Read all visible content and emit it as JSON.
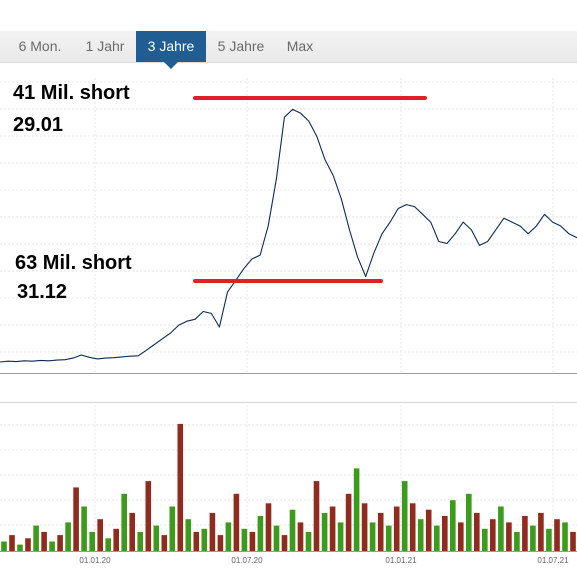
{
  "tabs": [
    {
      "label": "6 Mon.",
      "active": false
    },
    {
      "label": "1 Jahr",
      "active": false
    },
    {
      "label": "3 Jahre",
      "active": true
    },
    {
      "label": "5 Jahre",
      "active": false
    },
    {
      "label": "Max",
      "active": false
    }
  ],
  "annotations": {
    "upper": {
      "line1": "41 Mil. short",
      "line2": "29.01"
    },
    "lower": {
      "line1": "63 Mil. short",
      "line2": "31.12"
    }
  },
  "colors": {
    "price_line": "#0d2a52",
    "annotation_line": "#e01f26",
    "volume_up": "#3c9a1c",
    "volume_down": "#8f2b1f",
    "grid": "#e6e6e6",
    "axis": "#9a9a9a",
    "tab_active_bg": "#1f5d93"
  },
  "chart_data": {
    "type": "line",
    "x_tick_labels": [
      "01.01.20",
      "01.07.20",
      "01.01.21",
      "01.07.21"
    ],
    "price_series": {
      "x": [
        0,
        0.5,
        1,
        1.5,
        2,
        2.5,
        3,
        3.5,
        4,
        4.5,
        5,
        5.5,
        6,
        6.5,
        7,
        7.5,
        8,
        8.5,
        9,
        9.5,
        10,
        10.5,
        11,
        11.5,
        12,
        12.5,
        13,
        13.5,
        14,
        14.5,
        15,
        15.5,
        16,
        16.5,
        17,
        17.5,
        18,
        18.5,
        19,
        19.5,
        20,
        20.5,
        21,
        21.5,
        22,
        22.5,
        23,
        23.5,
        24,
        24.5,
        25,
        25.5,
        26,
        26.5,
        27,
        27.5,
        28,
        28.5,
        29,
        29.5,
        30,
        30.5,
        31,
        31.5,
        32,
        32.5,
        33,
        33.5,
        34,
        34.5,
        35,
        35.5
      ],
      "values": [
        0.0,
        0.2,
        0.1,
        0.3,
        0.2,
        0.4,
        0.3,
        0.5,
        0.6,
        1.0,
        1.8,
        1.2,
        0.8,
        1.0,
        1.1,
        1.3,
        1.5,
        1.6,
        3.0,
        4.5,
        6.0,
        7.5,
        9.5,
        10.5,
        11.0,
        13.0,
        12.5,
        9.0,
        18.0,
        21.0,
        24.0,
        26.5,
        27.5,
        35.0,
        47.0,
        63.0,
        65.0,
        64.0,
        62.0,
        58.0,
        52.0,
        48.0,
        42.0,
        34.0,
        27.0,
        22.0,
        28.0,
        33.0,
        36.0,
        39.5,
        40.5,
        40.0,
        38.0,
        36.0,
        31.0,
        30.5,
        33.0,
        36.0,
        34.0,
        30.0,
        31.0,
        34.0,
        37.0,
        36.0,
        35.0,
        33.0,
        35.0,
        38.0,
        36.0,
        35.0,
        33.0,
        32.0
      ],
      "ylim": [
        0,
        70
      ],
      "xlim": [
        0,
        35.5
      ]
    },
    "volume_series": {
      "values": [
        3,
        5,
        2,
        4,
        8,
        6,
        3,
        5,
        9,
        20,
        14,
        6,
        10,
        4,
        7,
        18,
        12,
        6,
        22,
        8,
        5,
        14,
        40,
        10,
        6,
        7,
        12,
        5,
        9,
        18,
        7,
        6,
        11,
        15,
        8,
        5,
        13,
        9,
        6,
        22,
        12,
        14,
        9,
        18,
        26,
        15,
        9,
        12,
        8,
        14,
        22,
        15,
        10,
        13,
        8,
        11,
        16,
        9,
        18,
        12,
        7,
        10,
        14,
        9,
        6,
        11,
        8,
        12,
        7,
        10,
        9,
        6
      ],
      "up": [
        true,
        false,
        true,
        false,
        true,
        false,
        true,
        false,
        true,
        false,
        true,
        true,
        false,
        true,
        false,
        true,
        false,
        true,
        false,
        true,
        false,
        true,
        false,
        true,
        false,
        true,
        false,
        false,
        true,
        false,
        true,
        false,
        true,
        false,
        true,
        false,
        true,
        false,
        true,
        false,
        true,
        false,
        true,
        false,
        true,
        false,
        true,
        false,
        true,
        false,
        true,
        false,
        true,
        false,
        true,
        false,
        true,
        false,
        true,
        false,
        true,
        false,
        true,
        false,
        true,
        false,
        true,
        false,
        true,
        false,
        true,
        false
      ],
      "ylim": [
        0,
        45
      ]
    }
  }
}
